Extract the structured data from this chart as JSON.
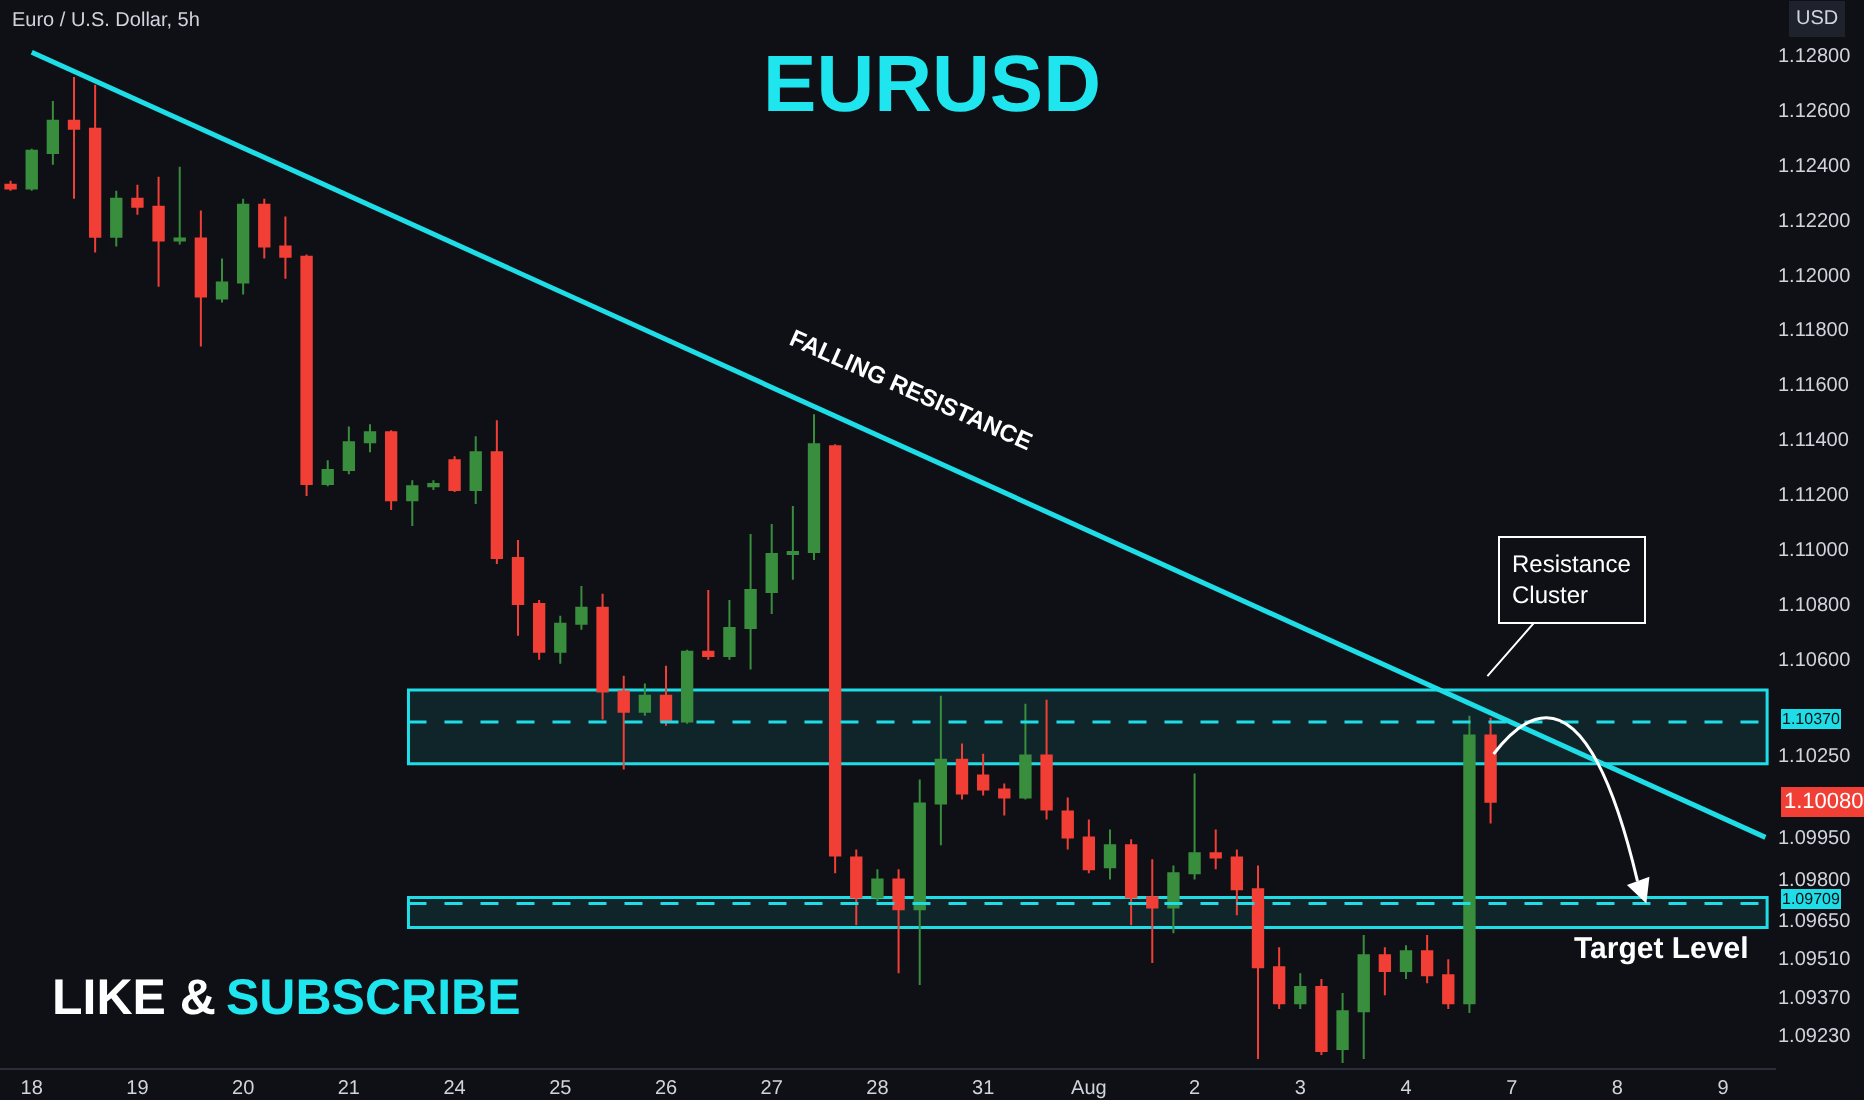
{
  "chart_data": {
    "type": "candlestick",
    "title": "EURUSD",
    "subtitle": "Euro / U.S. Dollar, 5h",
    "ylabel": "USD",
    "categories": [
      null,
      "18",
      null,
      null,
      null,
      null,
      "19",
      null,
      null,
      null,
      null,
      "20",
      null,
      null,
      null,
      null,
      "21",
      null,
      null,
      null,
      null,
      "24",
      null,
      null,
      null,
      null,
      "25",
      null,
      null,
      null,
      null,
      "26",
      null,
      null,
      null,
      null,
      "27",
      null,
      null,
      null,
      null,
      "28",
      null,
      null,
      null,
      null,
      "31",
      null,
      null,
      null,
      null,
      "Aug",
      null,
      null,
      null,
      null,
      "2",
      null,
      null,
      null,
      null,
      "3",
      null,
      null,
      null,
      null,
      "4",
      null,
      null,
      null,
      null,
      "7",
      null,
      null,
      null,
      null,
      "8",
      null,
      null,
      null,
      null,
      "9",
      null,
      null
    ],
    "ohlc": [
      [
        1.12327,
        1.12342,
        1.12305,
        1.12313
      ],
      [
        1.12313,
        1.12458,
        1.12305,
        1.12451
      ],
      [
        1.12443,
        1.12632,
        1.124,
        1.1256
      ],
      [
        1.1256,
        1.1272,
        1.12276,
        1.12531
      ],
      [
        1.12531,
        1.12691,
        1.1208,
        1.12138
      ],
      [
        1.12138,
        1.12305,
        1.12102,
        1.12276
      ],
      [
        1.12276,
        1.12327,
        1.12218,
        1.12247
      ],
      [
        1.12247,
        1.12356,
        1.11956,
        1.12124
      ],
      [
        1.12124,
        1.12393,
        1.12109,
        1.12131
      ],
      [
        1.12131,
        1.12233,
        1.11738,
        1.1192
      ],
      [
        1.11913,
        1.12058,
        1.11898,
        1.11971
      ],
      [
        1.11971,
        1.12276,
        1.11927,
        1.12254
      ],
      [
        1.12254,
        1.12276,
        1.12058,
        1.12102
      ],
      [
        1.12102,
        1.12211,
        1.11985,
        1.12065
      ],
      [
        1.12065,
        1.12073,
        1.11193,
        1.11237
      ],
      [
        1.11237,
        1.11324,
        1.11229,
        1.11288
      ],
      [
        1.11288,
        1.11447,
        1.11273,
        1.11389
      ],
      [
        1.11389,
        1.11455,
        1.11353,
        1.11426
      ],
      [
        1.11426,
        1.11433,
        1.11142,
        1.11178
      ],
      [
        1.11178,
        1.11251,
        1.11084,
        1.11229
      ],
      [
        1.11229,
        1.11251,
        1.11215,
        1.11237
      ],
      [
        1.11324,
        1.11338,
        1.11208,
        1.11215
      ],
      [
        1.11215,
        1.11411,
        1.11164,
        1.11353
      ],
      [
        1.11353,
        1.11469,
        1.10946,
        1.10968
      ],
      [
        1.10968,
        1.11033,
        1.10684,
        1.108
      ],
      [
        1.108,
        1.10815,
        1.10597,
        1.10626
      ],
      [
        1.10626,
        1.10757,
        1.10582,
        1.10728
      ],
      [
        1.10728,
        1.10866,
        1.10706,
        1.10786
      ],
      [
        1.10786,
        1.10837,
        1.10379,
        1.10481
      ],
      [
        1.10481,
        1.10539,
        1.10197,
        1.10408
      ],
      [
        1.10408,
        1.1051,
        1.10393,
        1.10466
      ],
      [
        1.10466,
        1.10575,
        1.10357,
        1.10372
      ],
      [
        1.10372,
        1.10633,
        1.10364,
        1.10626
      ],
      [
        1.10626,
        1.10851,
        1.10597,
        1.10611
      ],
      [
        1.10611,
        1.10815,
        1.10597,
        1.10713
      ],
      [
        1.10713,
        1.11055,
        1.10561,
        1.10851
      ],
      [
        1.10844,
        1.11091,
        1.10764,
        1.10982
      ],
      [
        1.10982,
        1.11157,
        1.10888,
        1.10989
      ],
      [
        1.10989,
        1.11491,
        1.1096,
        1.11382
      ],
      [
        1.11375,
        1.11382,
        1.09819,
        1.09884
      ],
      [
        1.09877,
        1.09906,
        1.0963,
        1.09732
      ],
      [
        1.09732,
        1.09834,
        1.09717,
        1.09797
      ],
      [
        1.09797,
        1.09834,
        1.09455,
        1.09688
      ],
      [
        1.09688,
        1.10161,
        1.09412,
        1.10073
      ],
      [
        1.10073,
        1.10466,
        1.09921,
        1.10233
      ],
      [
        1.10233,
        1.10292,
        1.10088,
        1.1011
      ],
      [
        1.10175,
        1.10255,
        1.10103,
        1.10124
      ],
      [
        1.10124,
        1.10146,
        1.1003,
        1.10095
      ],
      [
        1.10095,
        1.10437,
        1.10088,
        1.10248
      ],
      [
        1.10248,
        1.10451,
        1.10015,
        1.10052
      ],
      [
        1.10044,
        1.10095,
        1.09906,
        1.0995
      ],
      [
        1.0995,
        1.10015,
        1.09819,
        1.09834
      ],
      [
        1.09841,
        1.09979,
        1.09797,
        1.09921
      ],
      [
        1.09921,
        1.09943,
        1.0963,
        1.09732
      ],
      [
        1.09732,
        1.0987,
        1.09492,
        1.09695
      ],
      [
        1.09695,
        1.09848,
        1.09601,
        1.09819
      ],
      [
        1.09819,
        1.10183,
        1.09797,
        1.09892
      ],
      [
        1.09892,
        1.09979,
        1.09834,
        1.09877
      ],
      [
        1.09877,
        1.09906,
        1.09666,
        1.09761
      ],
      [
        1.09761,
        1.09848,
        1.09143,
        1.09477
      ],
      [
        1.09477,
        1.0955,
        1.09325,
        1.09346
      ],
      [
        1.09346,
        1.09455,
        1.09325,
        1.09405
      ],
      [
        1.09405,
        1.09434,
        1.09157,
        1.09172
      ],
      [
        1.09179,
        1.09383,
        1.09128,
        1.09317
      ],
      [
        1.09317,
        1.09594,
        1.09143,
        1.09521
      ],
      [
        1.09521,
        1.0955,
        1.09375,
        1.09463
      ],
      [
        1.09463,
        1.09557,
        1.09434,
        1.09535
      ],
      [
        1.09535,
        1.09594,
        1.09419,
        1.09448
      ],
      [
        1.09448,
        1.09506,
        1.09325,
        1.09346
      ],
      [
        1.09346,
        1.10393,
        1.0931,
        1.10321
      ],
      [
        1.10321,
        1.10386,
        1.10001,
        1.1008
      ],
      null,
      null,
      null,
      null,
      null,
      null,
      null,
      null,
      null,
      null,
      null,
      null,
      null
    ],
    "colors": [
      "#f23f36",
      "#388e3c",
      "#388e3c",
      "#f23f36",
      "#f23f36",
      "#388e3c",
      "#f23f36",
      "#f23f36",
      "#388e3c",
      "#f23f36",
      "#388e3c",
      "#388e3c",
      "#f23f36",
      "#f23f36",
      "#f23f36",
      "#388e3c",
      "#388e3c",
      "#388e3c",
      "#f23f36",
      "#388e3c",
      "#388e3c",
      "#f23f36",
      "#388e3c",
      "#f23f36",
      "#f23f36",
      "#f23f36",
      "#388e3c",
      "#388e3c",
      "#f23f36",
      "#f23f36",
      "#388e3c",
      "#f23f36",
      "#388e3c",
      "#f23f36",
      "#388e3c",
      "#388e3c",
      "#388e3c",
      "#388e3c",
      "#388e3c",
      "#f23f36",
      "#f23f36",
      "#388e3c",
      "#f23f36",
      "#388e3c",
      "#388e3c",
      "#f23f36",
      "#f23f36",
      "#f23f36",
      "#388e3c",
      "#f23f36",
      "#f23f36",
      "#f23f36",
      "#388e3c",
      "#f23f36",
      "#f23f36",
      "#388e3c",
      "#388e3c",
      "#f23f36",
      "#f23f36",
      "#f23f36",
      "#f23f36",
      "#388e3c",
      "#f23f36",
      "#388e3c",
      "#388e3c",
      "#f23f36",
      "#388e3c",
      "#f23f36",
      "#f23f36",
      "#388e3c",
      "#f23f36",
      null,
      null,
      null,
      null,
      null,
      null,
      null,
      null,
      null,
      null,
      null,
      null,
      null
    ],
    "series": [
      {
        "type": "line",
        "values": [
          null,
          1.1281,
          null,
          null,
          null,
          null,
          null,
          null,
          null,
          null,
          null,
          null,
          null,
          null,
          null,
          null,
          null,
          null,
          null,
          null,
          null,
          null,
          null,
          null,
          null,
          null,
          null,
          null,
          null,
          null,
          null,
          null,
          null,
          null,
          null,
          null,
          null,
          null,
          null,
          null,
          null,
          null,
          null,
          null,
          null,
          null,
          null,
          null,
          null,
          null,
          null,
          null,
          null,
          null,
          null,
          null,
          null,
          null,
          null,
          null,
          null,
          null,
          null,
          null,
          null,
          null,
          null,
          null,
          null,
          null,
          null,
          null,
          null,
          null,
          null,
          null,
          null,
          null,
          null,
          null,
          null,
          null,
          null,
          1.0995
        ],
        "color": "#1fdde6"
      }
    ],
    "ylim": [
      1.0911,
      1.13
    ],
    "yticks": [
      {
        "value": 1.128,
        "label": "1.12800"
      },
      {
        "value": 1.126,
        "label": "1.12600"
      },
      {
        "value": 1.124,
        "label": "1.12400"
      },
      {
        "value": 1.122,
        "label": "1.12200"
      },
      {
        "value": 1.12,
        "label": "1.12000"
      },
      {
        "value": 1.118,
        "label": "1.11800"
      },
      {
        "value": 1.116,
        "label": "1.11600"
      },
      {
        "value": 1.114,
        "label": "1.11400"
      },
      {
        "value": 1.112,
        "label": "1.11200"
      },
      {
        "value": 1.11,
        "label": "1.11000"
      },
      {
        "value": 1.108,
        "label": "1.10800"
      },
      {
        "value": 1.106,
        "label": "1.10600"
      },
      {
        "value": 1.1025,
        "label": "1.10250"
      },
      {
        "value": 1.0995,
        "label": "1.09950"
      },
      {
        "value": 1.098,
        "label": "1.09800"
      },
      {
        "value": 1.0965,
        "label": "1.09650"
      },
      {
        "value": 1.0951,
        "label": "1.09510"
      },
      {
        "value": 1.0937,
        "label": "1.09370"
      },
      {
        "value": 1.0923,
        "label": "1.09230"
      }
    ],
    "bands": [
      {
        "axis": "y",
        "from": 1.10218,
        "to": 1.10487,
        "color": "#1fdde6"
      },
      {
        "axis": "y",
        "from": 1.09622,
        "to": 1.09731,
        "label": "Target Level",
        "color": "#1fdde6"
      }
    ],
    "ref_lines": [
      {
        "axis": "y",
        "value": 1.1037,
        "label": "1.10370",
        "color": "#1fdde6",
        "line_style": "dashed"
      },
      {
        "axis": "y",
        "value": 1.09709,
        "label": "1.09709",
        "color": "#1fdde6",
        "line_style": "dashed"
      }
    ],
    "annotations": [
      "FALLING RESISTANCE",
      "Resistance\nCluster",
      {
        "text": "1.10080",
        "y": 1.1008
      },
      "LIKE &",
      "SUBSCRIBE"
    ],
    "grid": false
  }
}
